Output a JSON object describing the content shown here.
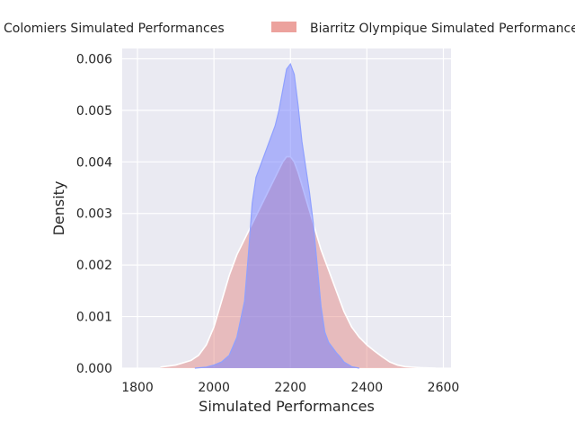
{
  "chart_data": {
    "type": "area",
    "title": "",
    "xlabel": "Simulated Performances",
    "ylabel": "Density",
    "xlim": [
      1760,
      2620
    ],
    "ylim": [
      0,
      0.0062
    ],
    "x_ticks": [
      1800,
      2000,
      2200,
      2400,
      2600
    ],
    "y_ticks": [
      0.0,
      0.001,
      0.002,
      0.003,
      0.004,
      0.005,
      0.006
    ],
    "x_tick_labels": [
      "1800",
      "2000",
      "2200",
      "2400",
      "2600"
    ],
    "y_tick_labels": [
      "0.000",
      "0.001",
      "0.002",
      "0.003",
      "0.004",
      "0.005",
      "0.006"
    ],
    "grid": true,
    "background": "#eaeaf2",
    "legend_position": "top (outside plot)",
    "series": [
      {
        "name": "Colomiers Simulated Performances",
        "color": "#6f7cff",
        "fill_opacity": 0.5,
        "x": [
          1950,
          1980,
          2000,
          2020,
          2040,
          2060,
          2080,
          2090,
          2100,
          2110,
          2120,
          2130,
          2140,
          2150,
          2160,
          2170,
          2180,
          2190,
          2200,
          2210,
          2220,
          2230,
          2240,
          2250,
          2260,
          2270,
          2280,
          2290,
          2300,
          2310,
          2320,
          2330,
          2340,
          2360,
          2380
        ],
        "y": [
          0.0,
          2e-05,
          6e-05,
          0.00012,
          0.00025,
          0.0006,
          0.0013,
          0.0022,
          0.0032,
          0.0037,
          0.0039,
          0.0041,
          0.0043,
          0.0045,
          0.0047,
          0.005,
          0.0054,
          0.0058,
          0.0059,
          0.0057,
          0.0051,
          0.0044,
          0.0039,
          0.0034,
          0.0028,
          0.002,
          0.0012,
          0.0007,
          0.0005,
          0.0004,
          0.0003,
          0.00022,
          0.00012,
          3e-05,
          0.0
        ]
      },
      {
        "name": "Biarritz Olympique Simulated Performances",
        "color": "#e5837c",
        "fill_opacity": 0.45,
        "x": [
          1860,
          1900,
          1940,
          1960,
          1980,
          2000,
          2020,
          2040,
          2060,
          2080,
          2100,
          2120,
          2140,
          2160,
          2180,
          2190,
          2200,
          2210,
          2220,
          2240,
          2260,
          2280,
          2300,
          2320,
          2340,
          2360,
          2380,
          2400,
          2420,
          2440,
          2460,
          2480,
          2500,
          2540,
          2580
        ],
        "y": [
          2e-05,
          6e-05,
          0.00015,
          0.00025,
          0.00045,
          0.0008,
          0.0013,
          0.0018,
          0.0022,
          0.0025,
          0.0028,
          0.0031,
          0.0034,
          0.0037,
          0.004,
          0.0041,
          0.0041,
          0.004,
          0.0038,
          0.0033,
          0.0028,
          0.0023,
          0.0019,
          0.0015,
          0.0011,
          0.0008,
          0.0006,
          0.00045,
          0.00033,
          0.00022,
          0.00012,
          6e-05,
          3e-05,
          1e-05,
          0.0
        ]
      }
    ]
  }
}
